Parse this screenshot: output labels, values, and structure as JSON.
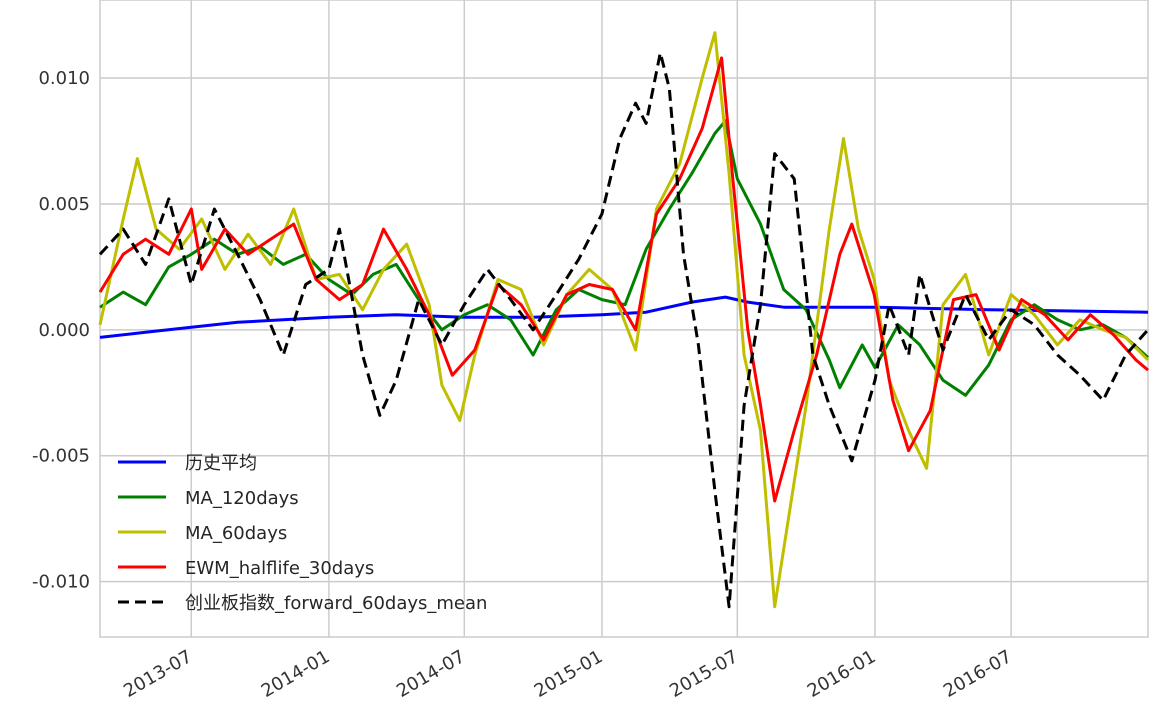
{
  "chart_data": {
    "type": "line",
    "title": "",
    "xlabel": "",
    "ylabel": "",
    "grid": true,
    "legend_position": "lower-left",
    "xlim": [
      "2013-03-01",
      "2016-12-31"
    ],
    "ylim": [
      -0.0122,
      0.0131
    ],
    "x_ticks": [
      {
        "date": "2013-07-01",
        "label": "2013-07"
      },
      {
        "date": "2014-01-01",
        "label": "2014-01"
      },
      {
        "date": "2014-07-01",
        "label": "2014-07"
      },
      {
        "date": "2015-01-01",
        "label": "2015-01"
      },
      {
        "date": "2015-07-01",
        "label": "2015-07"
      },
      {
        "date": "2016-01-01",
        "label": "2016-01"
      },
      {
        "date": "2016-07-01",
        "label": "2016-07"
      }
    ],
    "y_ticks": [
      {
        "value": 0.01,
        "label": "0.010"
      },
      {
        "value": 0.005,
        "label": "0.005"
      },
      {
        "value": 0.0,
        "label": "0.000"
      },
      {
        "value": -0.005,
        "label": "-0.005"
      },
      {
        "value": -0.01,
        "label": "-0.010"
      }
    ],
    "series": [
      {
        "name": "历史平均",
        "color": "#0000ff",
        "style": "solid",
        "points": [
          [
            "2013-03-01",
            -0.0003
          ],
          [
            "2013-05-01",
            -0.0001
          ],
          [
            "2013-07-01",
            0.0001
          ],
          [
            "2013-09-01",
            0.0003
          ],
          [
            "2013-11-01",
            0.0004
          ],
          [
            "2014-01-01",
            0.0005
          ],
          [
            "2014-04-01",
            0.0006
          ],
          [
            "2014-07-01",
            0.0005
          ],
          [
            "2014-10-01",
            0.0005
          ],
          [
            "2015-01-01",
            0.0006
          ],
          [
            "2015-03-01",
            0.0007
          ],
          [
            "2015-05-01",
            0.0011
          ],
          [
            "2015-06-15",
            0.0013
          ],
          [
            "2015-07-15",
            0.0011
          ],
          [
            "2015-09-01",
            0.0009
          ],
          [
            "2016-01-01",
            0.0009
          ],
          [
            "2016-06-01",
            0.0008
          ],
          [
            "2016-12-31",
            0.0007
          ]
        ]
      },
      {
        "name": "MA_120days",
        "color": "#008000",
        "style": "solid",
        "points": [
          [
            "2013-03-01",
            0.0009
          ],
          [
            "2013-04-01",
            0.0015
          ],
          [
            "2013-05-01",
            0.001
          ],
          [
            "2013-06-01",
            0.0025
          ],
          [
            "2013-07-01",
            0.003
          ],
          [
            "2013-08-01",
            0.0036
          ],
          [
            "2013-09-01",
            0.003
          ],
          [
            "2013-10-01",
            0.0033
          ],
          [
            "2013-11-01",
            0.0026
          ],
          [
            "2013-12-01",
            0.003
          ],
          [
            "2014-01-01",
            0.002
          ],
          [
            "2014-02-01",
            0.0014
          ],
          [
            "2014-03-01",
            0.0022
          ],
          [
            "2014-04-01",
            0.0026
          ],
          [
            "2014-05-01",
            0.0012
          ],
          [
            "2014-06-01",
            0.0
          ],
          [
            "2014-07-01",
            0.0006
          ],
          [
            "2014-08-01",
            0.001
          ],
          [
            "2014-09-01",
            0.0004
          ],
          [
            "2014-10-01",
            -0.001
          ],
          [
            "2014-11-01",
            0.0008
          ],
          [
            "2014-12-01",
            0.0016
          ],
          [
            "2015-01-01",
            0.0012
          ],
          [
            "2015-02-01",
            0.001
          ],
          [
            "2015-03-01",
            0.0032
          ],
          [
            "2015-04-01",
            0.0048
          ],
          [
            "2015-05-01",
            0.0062
          ],
          [
            "2015-06-01",
            0.0078
          ],
          [
            "2015-06-15",
            0.0083
          ],
          [
            "2015-07-01",
            0.006
          ],
          [
            "2015-08-01",
            0.0042
          ],
          [
            "2015-09-01",
            0.0016
          ],
          [
            "2015-10-01",
            0.0008
          ],
          [
            "2015-11-01",
            -0.0012
          ],
          [
            "2015-11-15",
            -0.0023
          ],
          [
            "2015-12-15",
            -0.0006
          ],
          [
            "2016-01-01",
            -0.0015
          ],
          [
            "2016-02-01",
            0.0002
          ],
          [
            "2016-03-01",
            -0.0006
          ],
          [
            "2016-04-01",
            -0.002
          ],
          [
            "2016-05-01",
            -0.0026
          ],
          [
            "2016-06-01",
            -0.0014
          ],
          [
            "2016-07-01",
            0.0004
          ],
          [
            "2016-08-01",
            0.001
          ],
          [
            "2016-09-01",
            0.0004
          ],
          [
            "2016-10-01",
            0.0
          ],
          [
            "2016-11-01",
            0.0002
          ],
          [
            "2016-12-01",
            -0.0003
          ],
          [
            "2016-12-31",
            -0.0011
          ]
        ]
      },
      {
        "name": "MA_60days",
        "color": "#bfbf00",
        "style": "solid",
        "points": [
          [
            "2013-03-01",
            0.0002
          ],
          [
            "2013-04-01",
            0.0044
          ],
          [
            "2013-04-20",
            0.0068
          ],
          [
            "2013-05-15",
            0.004
          ],
          [
            "2013-06-15",
            0.0032
          ],
          [
            "2013-07-15",
            0.0044
          ],
          [
            "2013-08-15",
            0.0024
          ],
          [
            "2013-09-15",
            0.0038
          ],
          [
            "2013-10-15",
            0.0026
          ],
          [
            "2013-11-15",
            0.0048
          ],
          [
            "2013-12-15",
            0.002
          ],
          [
            "2014-01-15",
            0.0022
          ],
          [
            "2014-02-15",
            0.0008
          ],
          [
            "2014-03-15",
            0.0024
          ],
          [
            "2014-04-15",
            0.0034
          ],
          [
            "2014-05-15",
            0.001
          ],
          [
            "2014-06-01",
            -0.0022
          ],
          [
            "2014-06-25",
            -0.0036
          ],
          [
            "2014-07-15",
            -0.001
          ],
          [
            "2014-08-15",
            0.002
          ],
          [
            "2014-09-15",
            0.0016
          ],
          [
            "2014-10-15",
            -0.0006
          ],
          [
            "2014-11-15",
            0.0014
          ],
          [
            "2014-12-15",
            0.0024
          ],
          [
            "2015-01-15",
            0.0016
          ],
          [
            "2015-02-15",
            -0.0008
          ],
          [
            "2015-03-15",
            0.0048
          ],
          [
            "2015-04-15",
            0.0066
          ],
          [
            "2015-05-15",
            0.01
          ],
          [
            "2015-06-01",
            0.0118
          ],
          [
            "2015-06-20",
            0.0062
          ],
          [
            "2015-07-10",
            -0.001
          ],
          [
            "2015-08-01",
            -0.004
          ],
          [
            "2015-08-20",
            -0.011
          ],
          [
            "2015-09-10",
            -0.007
          ],
          [
            "2015-10-01",
            -0.003
          ],
          [
            "2015-11-01",
            0.004
          ],
          [
            "2015-11-20",
            0.0076
          ],
          [
            "2015-12-10",
            0.004
          ],
          [
            "2015-12-31",
            0.002
          ],
          [
            "2016-01-20",
            -0.002
          ],
          [
            "2016-02-15",
            -0.004
          ],
          [
            "2016-03-10",
            -0.0055
          ],
          [
            "2016-04-01",
            0.001
          ],
          [
            "2016-05-01",
            0.0022
          ],
          [
            "2016-06-01",
            -0.001
          ],
          [
            "2016-07-01",
            0.0014
          ],
          [
            "2016-08-01",
            0.0006
          ],
          [
            "2016-09-01",
            -0.0006
          ],
          [
            "2016-10-01",
            0.0004
          ],
          [
            "2016-11-01",
            0.0
          ],
          [
            "2016-12-01",
            -0.0003
          ],
          [
            "2016-12-31",
            -0.0012
          ]
        ]
      },
      {
        "name": "EWM_halflife_30days",
        "color": "#ff0000",
        "style": "solid",
        "points": [
          [
            "2013-03-01",
            0.0015
          ],
          [
            "2013-04-01",
            0.003
          ],
          [
            "2013-05-01",
            0.0036
          ],
          [
            "2013-06-01",
            0.003
          ],
          [
            "2013-07-01",
            0.0048
          ],
          [
            "2013-07-15",
            0.0024
          ],
          [
            "2013-08-15",
            0.004
          ],
          [
            "2013-09-15",
            0.003
          ],
          [
            "2013-10-15",
            0.0036
          ],
          [
            "2013-11-15",
            0.0042
          ],
          [
            "2013-12-15",
            0.002
          ],
          [
            "2014-01-15",
            0.0012
          ],
          [
            "2014-02-15",
            0.0018
          ],
          [
            "2014-03-15",
            0.004
          ],
          [
            "2014-04-15",
            0.0024
          ],
          [
            "2014-05-15",
            0.0006
          ],
          [
            "2014-06-15",
            -0.0018
          ],
          [
            "2014-07-15",
            -0.0008
          ],
          [
            "2014-08-15",
            0.0018
          ],
          [
            "2014-09-15",
            0.001
          ],
          [
            "2014-10-15",
            -0.0004
          ],
          [
            "2014-11-15",
            0.0014
          ],
          [
            "2014-12-15",
            0.0018
          ],
          [
            "2015-01-15",
            0.0016
          ],
          [
            "2015-02-15",
            0.0
          ],
          [
            "2015-03-15",
            0.0046
          ],
          [
            "2015-04-15",
            0.006
          ],
          [
            "2015-05-15",
            0.008
          ],
          [
            "2015-06-10",
            0.0108
          ],
          [
            "2015-06-25",
            0.006
          ],
          [
            "2015-07-15",
            0.0
          ],
          [
            "2015-08-01",
            -0.003
          ],
          [
            "2015-08-20",
            -0.0068
          ],
          [
            "2015-09-15",
            -0.004
          ],
          [
            "2015-10-15",
            -0.001
          ],
          [
            "2015-11-15",
            0.003
          ],
          [
            "2015-12-01",
            0.0042
          ],
          [
            "2015-12-31",
            0.0014
          ],
          [
            "2016-01-25",
            -0.0028
          ],
          [
            "2016-02-15",
            -0.0048
          ],
          [
            "2016-03-15",
            -0.0032
          ],
          [
            "2016-04-15",
            0.0012
          ],
          [
            "2016-05-15",
            0.0014
          ],
          [
            "2016-06-15",
            -0.0008
          ],
          [
            "2016-07-15",
            0.0012
          ],
          [
            "2016-08-15",
            0.0006
          ],
          [
            "2016-09-15",
            -0.0004
          ],
          [
            "2016-10-15",
            0.0006
          ],
          [
            "2016-11-15",
            -0.0002
          ],
          [
            "2016-12-15",
            -0.0012
          ],
          [
            "2016-12-31",
            -0.0016
          ]
        ]
      },
      {
        "name": "创业板指数_forward_60days_mean",
        "color": "#000000",
        "style": "dashed",
        "points": [
          [
            "2013-03-01",
            0.003
          ],
          [
            "2013-04-01",
            0.004
          ],
          [
            "2013-05-01",
            0.0026
          ],
          [
            "2013-06-01",
            0.0052
          ],
          [
            "2013-07-01",
            0.0018
          ],
          [
            "2013-08-01",
            0.0048
          ],
          [
            "2013-09-01",
            0.003
          ],
          [
            "2013-10-01",
            0.0012
          ],
          [
            "2013-11-01",
            -0.001
          ],
          [
            "2013-12-01",
            0.0018
          ],
          [
            "2014-01-01",
            0.0024
          ],
          [
            "2014-01-15",
            0.004
          ],
          [
            "2014-02-15",
            -0.001
          ],
          [
            "2014-03-10",
            -0.0034
          ],
          [
            "2014-04-01",
            -0.002
          ],
          [
            "2014-05-01",
            0.0012
          ],
          [
            "2014-06-01",
            -0.0006
          ],
          [
            "2014-07-01",
            0.001
          ],
          [
            "2014-08-01",
            0.0024
          ],
          [
            "2014-09-01",
            0.0012
          ],
          [
            "2014-10-01",
            0.0
          ],
          [
            "2014-11-01",
            0.0014
          ],
          [
            "2014-12-01",
            0.0028
          ],
          [
            "2015-01-01",
            0.0046
          ],
          [
            "2015-01-25",
            0.0076
          ],
          [
            "2015-02-15",
            0.009
          ],
          [
            "2015-03-01",
            0.0082
          ],
          [
            "2015-03-20",
            0.011
          ],
          [
            "2015-04-01",
            0.0096
          ],
          [
            "2015-04-20",
            0.003
          ],
          [
            "2015-05-10",
            -0.0006
          ],
          [
            "2015-06-01",
            -0.0064
          ],
          [
            "2015-06-20",
            -0.011
          ],
          [
            "2015-07-10",
            -0.003
          ],
          [
            "2015-08-01",
            0.001
          ],
          [
            "2015-08-20",
            0.007
          ],
          [
            "2015-09-15",
            0.006
          ],
          [
            "2015-10-10",
            -0.001
          ],
          [
            "2015-11-01",
            -0.003
          ],
          [
            "2015-12-01",
            -0.0052
          ],
          [
            "2016-01-01",
            -0.002
          ],
          [
            "2016-01-20",
            0.001
          ],
          [
            "2016-02-15",
            -0.001
          ],
          [
            "2016-03-01",
            0.0022
          ],
          [
            "2016-04-01",
            -0.0008
          ],
          [
            "2016-05-01",
            0.0014
          ],
          [
            "2016-06-01",
            -0.0004
          ],
          [
            "2016-07-01",
            0.0008
          ],
          [
            "2016-08-01",
            0.0002
          ],
          [
            "2016-09-01",
            -0.001
          ],
          [
            "2016-10-01",
            -0.0018
          ],
          [
            "2016-11-01",
            -0.0028
          ],
          [
            "2016-12-01",
            -0.001
          ],
          [
            "2016-12-31",
            0.0
          ]
        ]
      }
    ]
  }
}
